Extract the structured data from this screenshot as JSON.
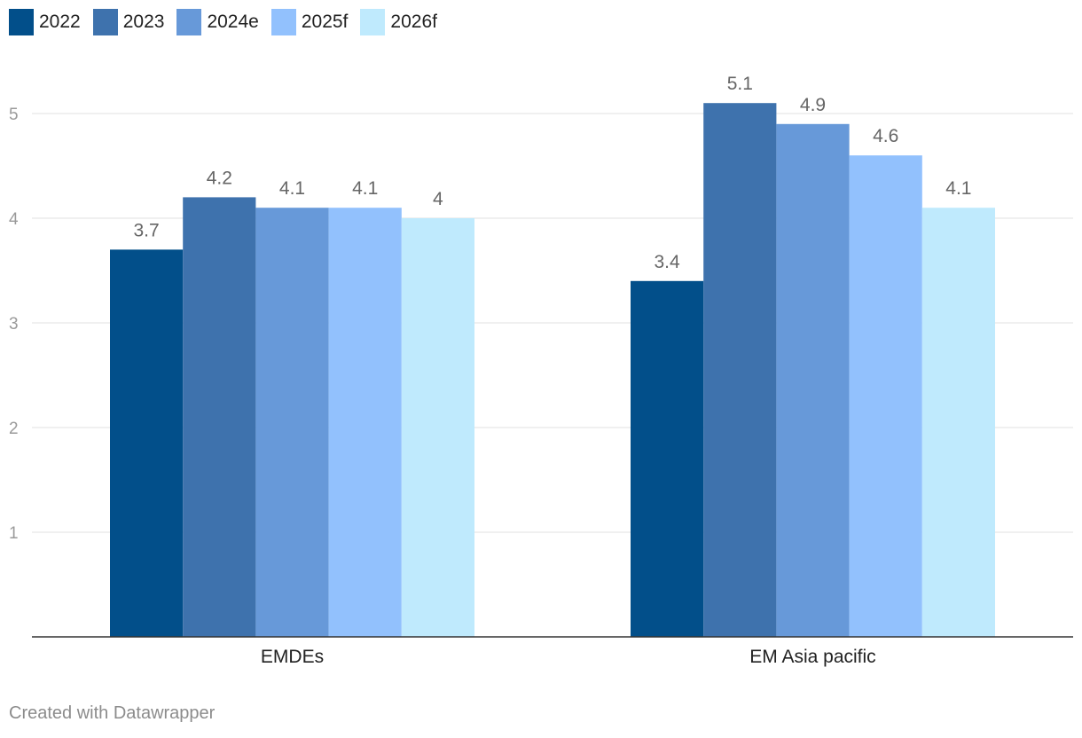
{
  "chart_data": {
    "type": "bar",
    "categories": [
      "EMDEs",
      "EM Asia pacific"
    ],
    "series": [
      {
        "name": "2022",
        "color": "#024f8a",
        "values": [
          3.7,
          3.4
        ]
      },
      {
        "name": "2023",
        "color": "#3e72ad",
        "values": [
          4.2,
          5.1
        ]
      },
      {
        "name": "2024e",
        "color": "#6799d9",
        "values": [
          4.1,
          4.9
        ]
      },
      {
        "name": "2025f",
        "color": "#92c1fd",
        "values": [
          4.1,
          4.6
        ]
      },
      {
        "name": "2026f",
        "color": "#bfeafd",
        "values": [
          4.0,
          4.1
        ]
      }
    ],
    "value_labels": [
      [
        "3.7",
        "3.4"
      ],
      [
        "4.2",
        "5.1"
      ],
      [
        "4.1",
        "4.9"
      ],
      [
        "4.1",
        "4.6"
      ],
      [
        "4",
        "4.1"
      ]
    ],
    "yticks": [
      "1",
      "2",
      "3",
      "4",
      "5"
    ],
    "ylim": [
      0,
      5.5
    ],
    "grid": true,
    "legend": "top-left",
    "title": "",
    "xlabel": "",
    "ylabel": ""
  },
  "footer": {
    "credit": "Created with Datawrapper"
  }
}
